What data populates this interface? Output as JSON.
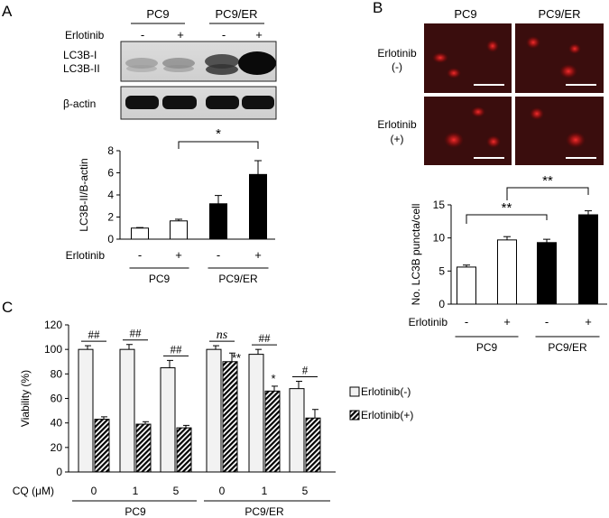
{
  "panelA": {
    "letter": "A",
    "groups": [
      "PC9",
      "PC9/ER"
    ],
    "erlotinib_label": "Erlotinib",
    "lane_signs": [
      "-",
      "+",
      "-",
      "+"
    ],
    "lc3b_label_1": "LC3B-I",
    "lc3b_label_2": "LC3B-II",
    "actin_label": "β-actin",
    "chart_data": {
      "type": "bar",
      "ylabel": "LC3B-II/B-actin",
      "ylim": [
        0,
        8
      ],
      "yticks": [
        0,
        2,
        4,
        6,
        8
      ],
      "categories": [
        "PC9 -",
        "PC9 +",
        "PC9/ER -",
        "PC9/ER +"
      ],
      "values": [
        1.0,
        1.65,
        3.2,
        5.85
      ],
      "errors": [
        0.05,
        0.15,
        0.75,
        1.25
      ],
      "fills": [
        "#ffffff",
        "#ffffff",
        "#000000",
        "#000000"
      ],
      "erlotinib_label": "Erlotinib",
      "signs": [
        "-",
        "+",
        "-",
        "+"
      ],
      "groups": [
        "PC9",
        "PC9/ER"
      ],
      "sig": "*"
    }
  },
  "panelB": {
    "letter": "B",
    "groups": [
      "PC9",
      "PC9/ER"
    ],
    "row1_label_a": "Erlotinib",
    "row1_label_b": "(-)",
    "row2_label_a": "Erlotinib",
    "row2_label_b": "(+)",
    "chart_data": {
      "type": "bar",
      "ylabel": "No. LC3B puncta/cell",
      "ylim": [
        0,
        15
      ],
      "yticks": [
        0,
        5,
        10,
        15
      ],
      "categories": [
        "PC9 -",
        "PC9 +",
        "PC9/ER -",
        "PC9/ER +"
      ],
      "values": [
        5.6,
        9.7,
        9.3,
        13.5
      ],
      "errors": [
        0.3,
        0.5,
        0.5,
        0.6
      ],
      "fills": [
        "#ffffff",
        "#ffffff",
        "#000000",
        "#000000"
      ],
      "erlotinib_label": "Erlotinib",
      "signs": [
        "-",
        "+",
        "-",
        "+"
      ],
      "groups": [
        "PC9",
        "PC9/ER"
      ],
      "sig_1": "**",
      "sig_2": "**"
    }
  },
  "panelC": {
    "letter": "C",
    "chart_data": {
      "type": "bar",
      "ylabel": "Viability (%)",
      "ylim": [
        0,
        120
      ],
      "yticks": [
        0,
        20,
        40,
        60,
        80,
        100,
        120
      ],
      "xlabel": "CQ (μM)",
      "categories": [
        "0",
        "1",
        "5",
        "0",
        "1",
        "5"
      ],
      "groups": [
        "PC9",
        "PC9/ER"
      ],
      "series": [
        {
          "name": "Erlotinib(-)",
          "values": [
            100,
            100,
            85,
            100,
            96,
            68
          ],
          "errors": [
            3,
            4,
            6,
            3,
            4,
            6
          ]
        },
        {
          "name": "Erlotinib(+)",
          "values": [
            43,
            39,
            36,
            90,
            66,
            44
          ],
          "errors": [
            2,
            2,
            2,
            7,
            4,
            7
          ]
        }
      ],
      "pair_sig": [
        "##",
        "##",
        "##",
        "ns",
        "##",
        "#"
      ],
      "bar_sig": [
        "**",
        "*"
      ]
    }
  }
}
